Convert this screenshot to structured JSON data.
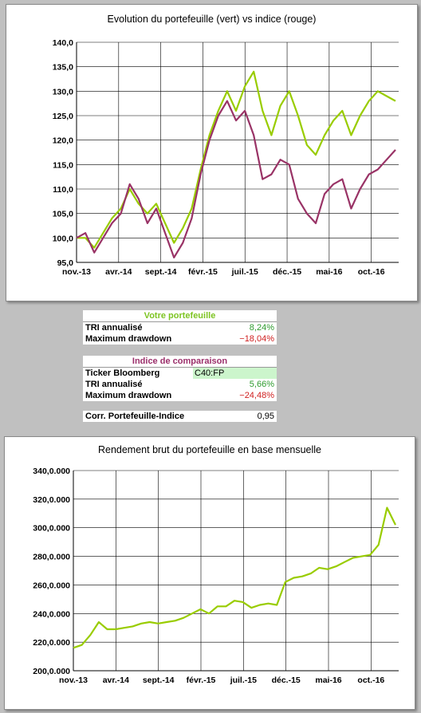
{
  "chart_data": [
    {
      "type": "line",
      "title": "Evolution du portefeuille (vert) vs indice (rouge)",
      "xlabel": "",
      "ylabel": "",
      "x_tick_labels": [
        "nov.-13",
        "avr.-14",
        "sept.-14",
        "févr.-15",
        "juil.-15",
        "déc.-15",
        "mai-16",
        "oct.-16"
      ],
      "y_tick_labels": [
        "95,0",
        "100,0",
        "105,0",
        "110,0",
        "115,0",
        "120,0",
        "125,0",
        "130,0",
        "135,0",
        "140,0"
      ],
      "ylim": [
        95,
        140
      ],
      "grid": true,
      "series": [
        {
          "color": "#99cc00",
          "x": [
            "2013-11",
            "2013-12",
            "2014-01",
            "2014-02",
            "2014-03",
            "2014-04",
            "2014-05",
            "2014-06",
            "2014-07",
            "2014-08",
            "2014-09",
            "2014-10",
            "2014-11",
            "2014-12",
            "2015-01",
            "2015-02",
            "2015-03",
            "2015-04",
            "2015-05",
            "2015-06",
            "2015-07",
            "2015-08",
            "2015-09",
            "2015-10",
            "2015-11",
            "2015-12",
            "2016-01",
            "2016-02",
            "2016-03",
            "2016-04",
            "2016-05",
            "2016-06",
            "2016-07",
            "2016-08",
            "2016-09",
            "2016-10",
            "2016-11"
          ],
          "values": [
            100,
            100,
            98,
            101,
            104,
            106,
            110,
            107,
            105,
            107,
            103,
            99,
            102,
            106,
            114,
            121,
            126,
            130,
            126,
            131,
            134,
            126,
            121,
            127,
            130,
            125,
            119,
            117,
            121,
            124,
            126,
            121,
            125,
            128,
            130,
            129,
            128
          ]
        },
        {
          "color": "#993366",
          "x": [
            "2013-11",
            "2013-12",
            "2014-01",
            "2014-02",
            "2014-03",
            "2014-04",
            "2014-05",
            "2014-06",
            "2014-07",
            "2014-08",
            "2014-09",
            "2014-10",
            "2014-11",
            "2014-12",
            "2015-01",
            "2015-02",
            "2015-03",
            "2015-04",
            "2015-05",
            "2015-06",
            "2015-07",
            "2015-08",
            "2015-09",
            "2015-10",
            "2015-11",
            "2015-12",
            "2016-01",
            "2016-02",
            "2016-03",
            "2016-04",
            "2016-05",
            "2016-06",
            "2016-07",
            "2016-08",
            "2016-09",
            "2016-10",
            "2016-11"
          ],
          "values": [
            100,
            101,
            97,
            100,
            103,
            105,
            111,
            108,
            103,
            106,
            101,
            96,
            99,
            104,
            113,
            120,
            125,
            128,
            124,
            126,
            121,
            112,
            113,
            116,
            115,
            108,
            105,
            103,
            109,
            111,
            112,
            106,
            110,
            113,
            114,
            116,
            118
          ]
        }
      ]
    },
    {
      "type": "line",
      "title": "Rendement brut du portefeuille en base mensuelle",
      "xlabel": "",
      "ylabel": "",
      "x_tick_labels": [
        "nov.-13",
        "avr.-14",
        "sept.-14",
        "févr.-15",
        "juil.-15",
        "déc.-15",
        "mai-16",
        "oct.-16"
      ],
      "y_tick_labels": [
        "200,0.000",
        "220,0.000",
        "240,0.000",
        "260,0.000",
        "280,0.000",
        "300,0.000",
        "320,0.000",
        "340,0.000"
      ],
      "ylim": [
        200,
        340
      ],
      "grid": true,
      "series": [
        {
          "color": "#99cc00",
          "x": [
            "2013-11",
            "2013-12",
            "2014-01",
            "2014-02",
            "2014-03",
            "2014-04",
            "2014-05",
            "2014-06",
            "2014-07",
            "2014-08",
            "2014-09",
            "2014-10",
            "2014-11",
            "2014-12",
            "2015-01",
            "2015-02",
            "2015-03",
            "2015-04",
            "2015-05",
            "2015-06",
            "2015-07",
            "2015-08",
            "2015-09",
            "2015-10",
            "2015-11",
            "2015-12",
            "2016-01",
            "2016-02",
            "2016-03",
            "2016-04",
            "2016-05",
            "2016-06",
            "2016-07",
            "2016-08",
            "2016-09",
            "2016-10",
            "2016-11",
            "2016-11b",
            "2016-12"
          ],
          "values": [
            216,
            218,
            225,
            234,
            229,
            229,
            230,
            231,
            233,
            234,
            233,
            234,
            235,
            237,
            240,
            243,
            240,
            245,
            245,
            249,
            248,
            244,
            246,
            247,
            246,
            262,
            265,
            266,
            268,
            272,
            271,
            273,
            276,
            279,
            280,
            281,
            288,
            314,
            302
          ]
        }
      ]
    }
  ],
  "tables": {
    "portfolio": {
      "header": "Votre portefeuille",
      "tri_label": "TRI annualisé",
      "tri_value": "8,24%",
      "dd_label": "Maximum drawdown",
      "dd_value": "−18,04%"
    },
    "index": {
      "header": "Indice de comparaison",
      "ticker_label": "Ticker Bloomberg",
      "ticker_value": "C40:FP",
      "tri_label": "TRI annualisé",
      "tri_value": "5,66%",
      "dd_label": "Maximum drawdown",
      "dd_value": "−24,48%"
    },
    "corr": {
      "label": "Corr. Portefeuille-Indice",
      "value": "0,95"
    }
  }
}
